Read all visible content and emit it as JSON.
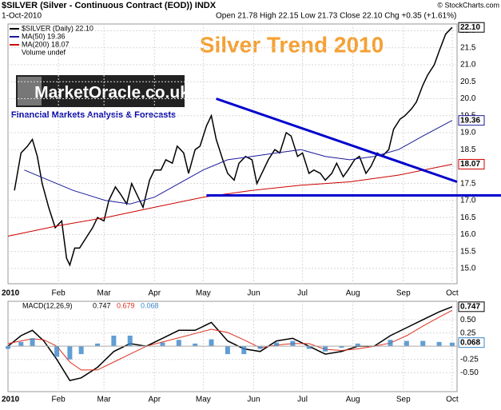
{
  "header": {
    "symbol": "$SILVER (Silver - Continuous Contract (EOD)) INDX",
    "date": "1-Oct-2010",
    "quote": "Open 21.78 High 22.15 Low 21.73 Close 22.10 Chg +0.35 (+1.61%)",
    "credit": "© StockCharts.com"
  },
  "logo": {
    "name": "MarketOracle.co.uk",
    "tagline": "Financial Markets Analysis & Forecasts"
  },
  "chart_data": [
    {
      "type": "line",
      "title": "Silver Trend 2010",
      "year_label": "2010",
      "xlim": [
        0,
        276
      ],
      "ylim": [
        14.55,
        22.2
      ],
      "grid": true,
      "xticks": [
        {
          "value": 31,
          "label": "Feb"
        },
        {
          "value": 59,
          "label": "Mar"
        },
        {
          "value": 90,
          "label": "Apr"
        },
        {
          "value": 120,
          "label": "May"
        },
        {
          "value": 151,
          "label": "Jun"
        },
        {
          "value": 181,
          "label": "Jul"
        },
        {
          "value": 212,
          "label": "Aug"
        },
        {
          "value": 243,
          "label": "Sep"
        },
        {
          "value": 273,
          "label": "Oct"
        }
      ],
      "yticks": [
        {
          "value": 15,
          "label": "15.0"
        },
        15.5,
        {
          "value": 16,
          "label": "16.0"
        },
        16.5,
        {
          "value": 17,
          "label": "17.0"
        },
        17.5,
        {
          "value": 18,
          "label": "18.0"
        },
        18.5,
        {
          "value": 19,
          "label": "19.0"
        },
        19.5,
        {
          "value": 20,
          "label": "20.0"
        },
        20.5,
        {
          "value": 21,
          "label": "21.0"
        },
        21.5,
        {
          "value": 22,
          "label": "22.0"
        }
      ],
      "series": [
        {
          "name": "$SILVER (Daily) 22.10",
          "color": "#000000",
          "last_label": "22.10",
          "x": [
            4,
            8,
            12,
            15,
            18,
            21,
            25,
            29,
            33,
            36,
            38,
            41,
            44,
            48,
            52,
            55,
            59,
            62,
            66,
            69,
            73,
            76,
            80,
            83,
            87,
            90,
            94,
            97,
            101,
            104,
            108,
            111,
            115,
            118,
            122,
            125,
            128,
            132,
            135,
            139,
            142,
            146,
            150,
            153,
            157,
            160,
            164,
            167,
            171,
            174,
            178,
            181,
            185,
            188,
            192,
            195,
            199,
            202,
            206,
            209,
            213,
            216,
            220,
            223,
            227,
            230,
            234,
            237,
            241,
            244,
            248,
            251,
            255,
            258,
            262,
            265,
            269,
            273
          ],
          "values": [
            17.3,
            18.4,
            18.6,
            18.8,
            18.3,
            17.5,
            16.8,
            16.2,
            16.4,
            15.3,
            15.1,
            15.6,
            15.6,
            15.9,
            16.2,
            16.5,
            16.4,
            17.0,
            17.4,
            17.2,
            16.9,
            17.5,
            17.1,
            16.8,
            17.6,
            17.9,
            17.9,
            18.2,
            18.1,
            18.6,
            18.4,
            17.8,
            18.5,
            18.6,
            19.2,
            19.5,
            18.8,
            18.2,
            17.8,
            17.6,
            18.1,
            18.3,
            18.2,
            17.5,
            17.9,
            18.2,
            18.5,
            18.4,
            19.0,
            18.9,
            18.3,
            18.4,
            17.8,
            17.9,
            17.8,
            17.6,
            17.8,
            18.1,
            17.7,
            17.9,
            18.2,
            18.3,
            17.8,
            18.0,
            18.4,
            18.3,
            18.5,
            19.1,
            19.4,
            19.5,
            19.7,
            19.9,
            20.4,
            20.7,
            21.0,
            21.4,
            21.9,
            22.1
          ]
        },
        {
          "name": "MA(50) 19.36",
          "color": "#1a1a9a",
          "last_label": "19.36",
          "x": [
            10,
            20,
            40,
            60,
            75,
            90,
            105,
            120,
            135,
            150,
            165,
            180,
            195,
            210,
            225,
            240,
            255,
            273
          ],
          "values": [
            17.9,
            17.7,
            17.3,
            17.0,
            16.9,
            17.1,
            17.5,
            17.9,
            18.2,
            18.3,
            18.4,
            18.5,
            18.3,
            18.2,
            18.3,
            18.5,
            18.9,
            19.36
          ]
        },
        {
          "name": "MA(200) 18.07",
          "color": "#cc0000",
          "last_label": "18.07",
          "x": [
            0,
            30,
            60,
            90,
            120,
            150,
            180,
            210,
            240,
            273
          ],
          "values": [
            15.95,
            16.25,
            16.5,
            16.8,
            17.1,
            17.3,
            17.45,
            17.55,
            17.75,
            18.07
          ]
        }
      ],
      "volume_label": "Volume undef",
      "trend_lines": [
        {
          "color": "#0000cc",
          "x": [
            128,
            276
          ],
          "values": [
            20.0,
            17.55
          ]
        },
        {
          "color": "#0000cc",
          "x": [
            122,
            306
          ],
          "values": [
            17.15,
            17.15
          ]
        }
      ]
    },
    {
      "type": "line",
      "legend_label": "MACD(12,26,9)",
      "xlim": [
        0,
        276
      ],
      "ylim": [
        -0.86,
        0.85
      ],
      "grid": true,
      "yticks": [
        {
          "value": 0.5,
          "label": "0.50"
        },
        {
          "value": 0.25,
          "label": "0.25"
        },
        {
          "value": -0.25,
          "label": "-0.25"
        },
        {
          "value": -0.5,
          "label": "-0.50"
        }
      ],
      "x": [
        0,
        8,
        15,
        22,
        30,
        38,
        45,
        55,
        65,
        75,
        85,
        95,
        105,
        115,
        125,
        135,
        145,
        155,
        165,
        175,
        185,
        195,
        205,
        215,
        225,
        235,
        245,
        255,
        265,
        273
      ],
      "series": [
        {
          "name": "0.747",
          "color": "#000000",
          "last_label": "0.747",
          "values": [
            0.0,
            0.2,
            0.3,
            0.1,
            -0.25,
            -0.65,
            -0.6,
            -0.4,
            -0.1,
            0.05,
            0.0,
            0.15,
            0.3,
            0.3,
            0.45,
            0.1,
            -0.05,
            -0.1,
            0.1,
            0.15,
            0.0,
            -0.15,
            -0.1,
            0.0,
            0.0,
            0.2,
            0.35,
            0.5,
            0.65,
            0.747
          ]
        },
        {
          "name": "0.679",
          "color": "#e03020",
          "values": [
            0.05,
            0.1,
            0.14,
            0.12,
            0.0,
            -0.3,
            -0.45,
            -0.45,
            -0.3,
            -0.15,
            0.0,
            0.08,
            0.16,
            0.24,
            0.32,
            0.26,
            0.12,
            -0.03,
            0.02,
            0.05,
            0.05,
            -0.06,
            -0.08,
            -0.05,
            0.0,
            0.06,
            0.2,
            0.38,
            0.55,
            0.679
          ]
        },
        {
          "name": "0.068",
          "color": "#3a86c8",
          "type": "bar",
          "last_label": "0.068",
          "values": [
            -0.05,
            0.08,
            0.15,
            0.0,
            -0.2,
            -0.25,
            -0.15,
            0.05,
            0.2,
            0.2,
            0.0,
            0.07,
            0.12,
            0.05,
            0.13,
            -0.15,
            -0.15,
            -0.05,
            0.07,
            0.1,
            -0.05,
            -0.1,
            -0.03,
            0.05,
            0.0,
            0.12,
            0.1,
            0.1,
            0.08,
            0.068
          ]
        }
      ]
    }
  ]
}
